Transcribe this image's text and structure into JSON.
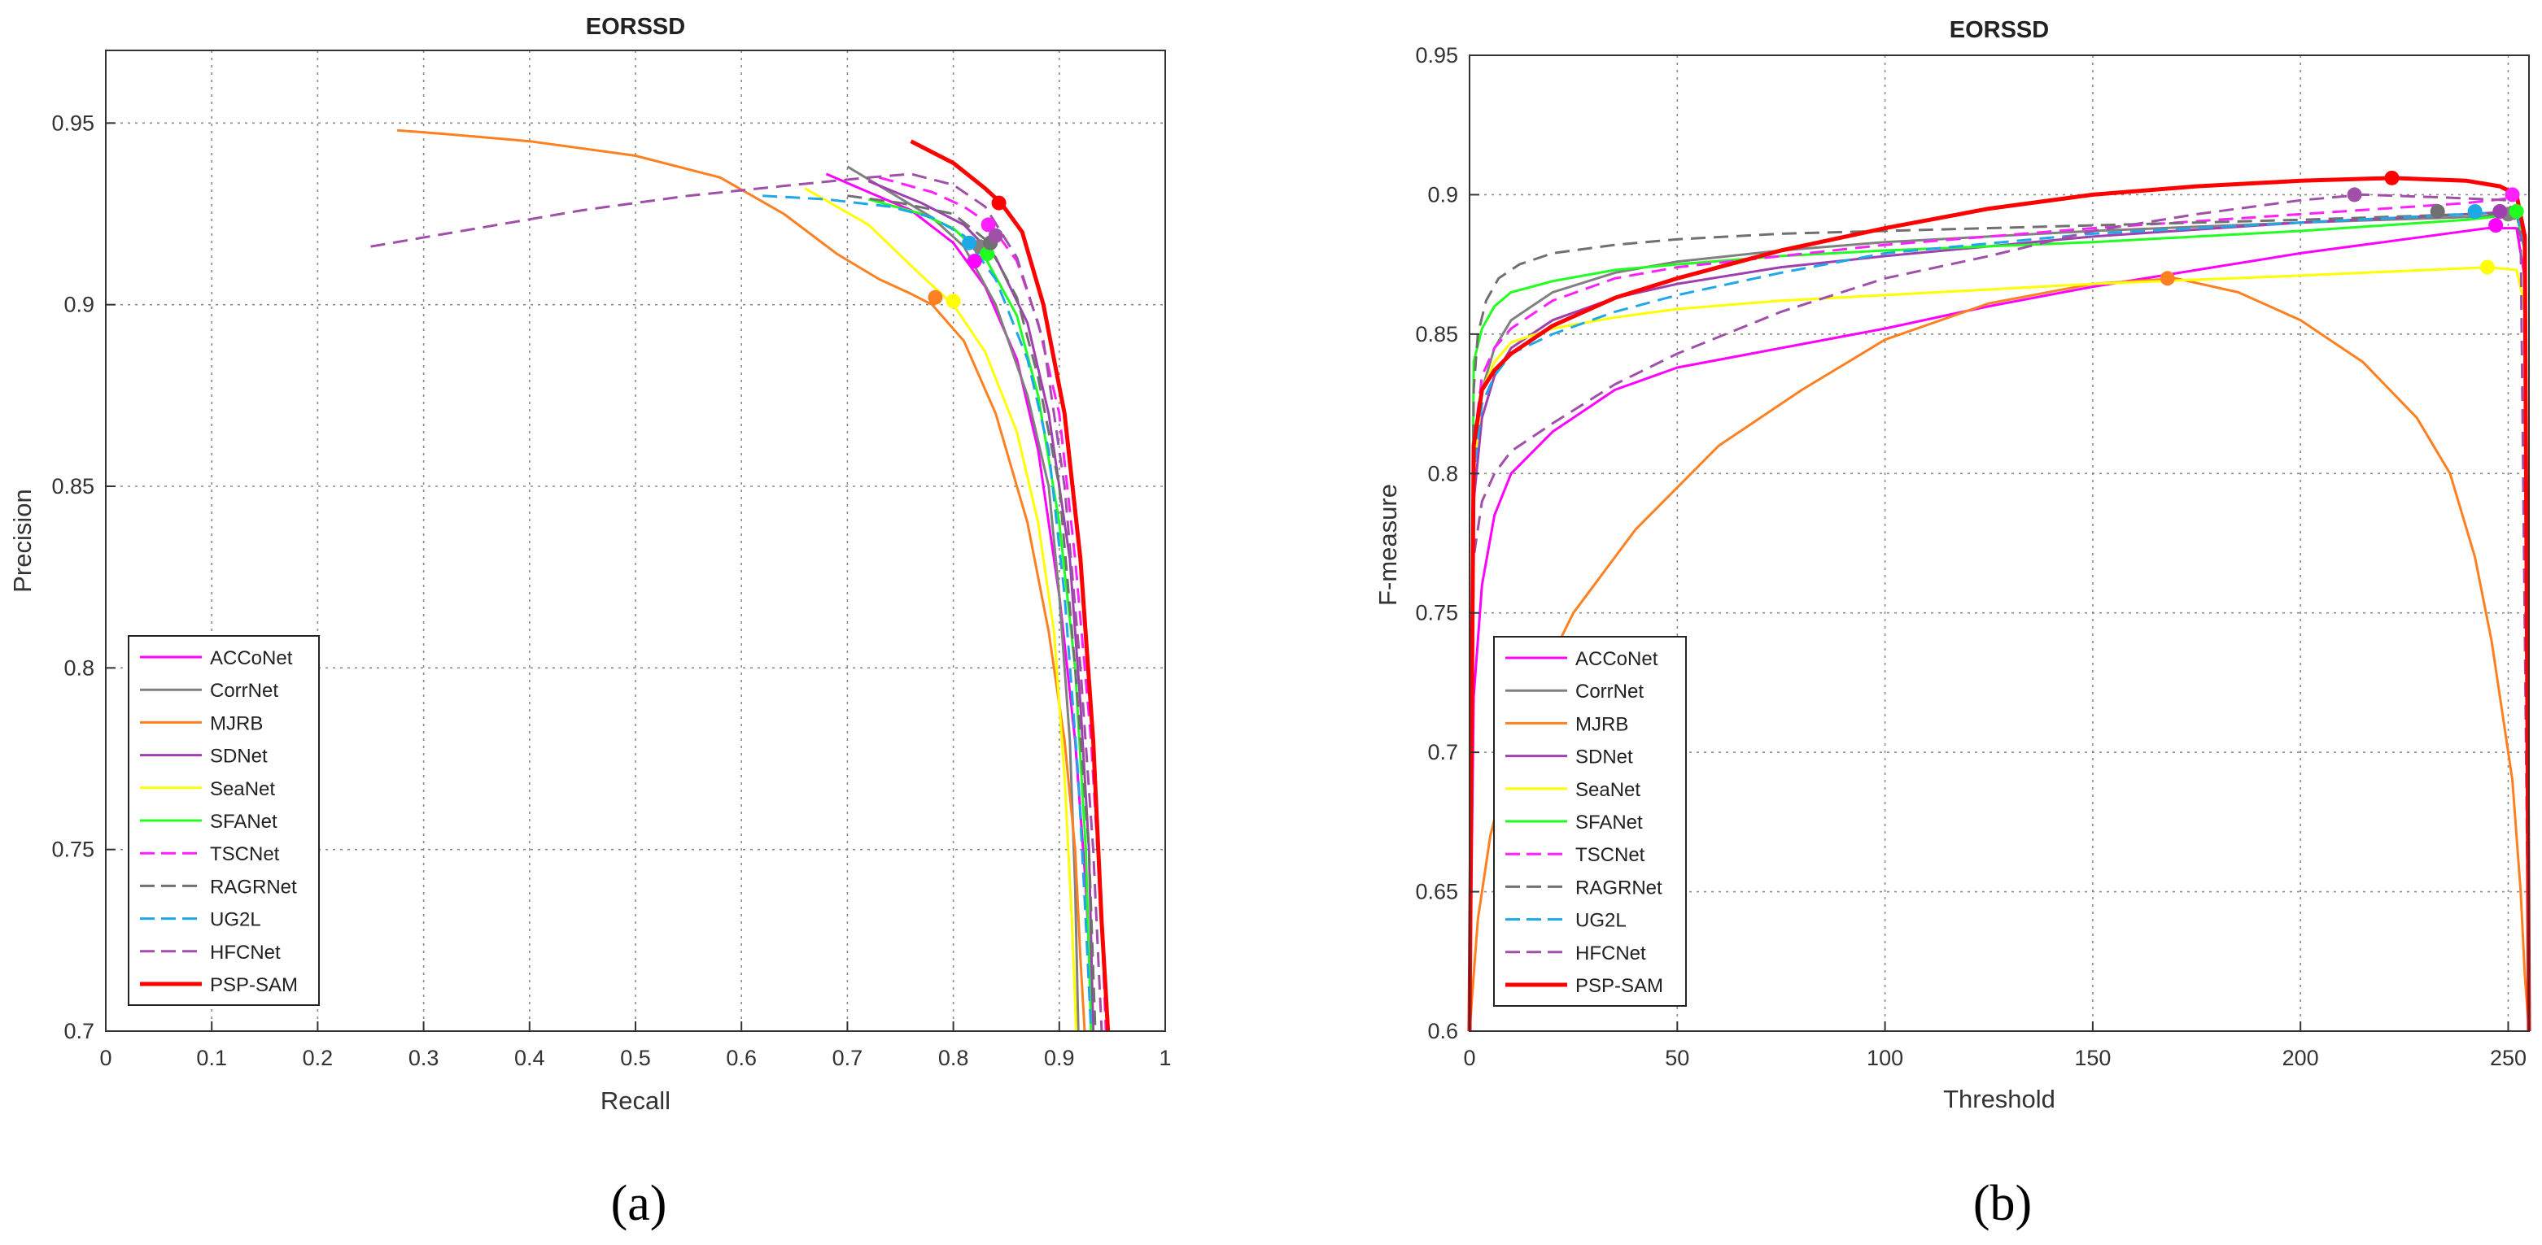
{
  "legend": [
    {
      "name": "ACCoNet",
      "color": "#ff00ff",
      "dash": false,
      "width": 3
    },
    {
      "name": "CorrNet",
      "color": "#808080",
      "dash": false,
      "width": 3
    },
    {
      "name": "MJRB",
      "color": "#ff8020",
      "dash": false,
      "width": 3
    },
    {
      "name": "SDNet",
      "color": "#a040b0",
      "dash": false,
      "width": 3
    },
    {
      "name": "SeaNet",
      "color": "#ffff00",
      "dash": false,
      "width": 3
    },
    {
      "name": "SFANet",
      "color": "#20ff20",
      "dash": false,
      "width": 3
    },
    {
      "name": "TSCNet",
      "color": "#ff20ff",
      "dash": true,
      "width": 3
    },
    {
      "name": "RAGRNet",
      "color": "#707070",
      "dash": true,
      "width": 3
    },
    {
      "name": "UG2L",
      "color": "#1ea8e8",
      "dash": true,
      "width": 3
    },
    {
      "name": "HFCNet",
      "color": "#a050a8",
      "dash": true,
      "width": 3
    },
    {
      "name": "PSP-SAM",
      "color": "#ff0000",
      "dash": false,
      "width": 5
    }
  ],
  "captions": {
    "a": "(a)",
    "b": "(b)"
  },
  "chart_data": [
    {
      "type": "line",
      "title": "EORSSD",
      "xlabel": "Recall",
      "ylabel": "Precision",
      "xlim": [
        0,
        1
      ],
      "ylim": [
        0.7,
        0.97
      ],
      "xticks": [
        0,
        0.1,
        0.2,
        0.3,
        0.4,
        0.5,
        0.6,
        0.7,
        0.8,
        0.9,
        1
      ],
      "xtick_labels": [
        "0",
        "0.1",
        "0.2",
        "0.3",
        "0.4",
        "0.5",
        "0.6",
        "0.7",
        "0.8",
        "0.9",
        "1"
      ],
      "yticks": [
        0.7,
        0.75,
        0.8,
        0.85,
        0.9,
        0.95
      ],
      "ytick_labels": [
        "0.7",
        "0.75",
        "0.8",
        "0.85",
        "0.9",
        "0.95"
      ],
      "grid": true,
      "legend_position": "bottom-left",
      "series": [
        {
          "name": "ACCoNet",
          "x": [
            0.68,
            0.72,
            0.76,
            0.8,
            0.83,
            0.86,
            0.88,
            0.9,
            0.915,
            0.925,
            0.93,
            0.932
          ],
          "y": [
            0.936,
            0.931,
            0.926,
            0.917,
            0.905,
            0.885,
            0.86,
            0.82,
            0.78,
            0.74,
            0.71,
            0.7
          ],
          "marker": [
            0.82,
            0.912
          ]
        },
        {
          "name": "CorrNet",
          "x": [
            0.7,
            0.74,
            0.78,
            0.81,
            0.84,
            0.87,
            0.89,
            0.9,
            0.91,
            0.915,
            0.918
          ],
          "y": [
            0.938,
            0.931,
            0.924,
            0.916,
            0.9,
            0.875,
            0.85,
            0.82,
            0.78,
            0.74,
            0.7
          ],
          "marker": [
            0.825,
            0.916
          ]
        },
        {
          "name": "MJRB",
          "x": [
            0.275,
            0.32,
            0.4,
            0.5,
            0.58,
            0.64,
            0.69,
            0.73,
            0.76,
            0.78,
            0.81,
            0.84,
            0.87,
            0.89,
            0.905,
            0.915,
            0.92,
            0.924
          ],
          "y": [
            0.948,
            0.947,
            0.945,
            0.941,
            0.935,
            0.925,
            0.914,
            0.907,
            0.903,
            0.9,
            0.89,
            0.87,
            0.84,
            0.81,
            0.78,
            0.75,
            0.72,
            0.7
          ],
          "marker": [
            0.783,
            0.902
          ]
        },
        {
          "name": "SDNet",
          "x": [
            0.72,
            0.77,
            0.81,
            0.84,
            0.87,
            0.89,
            0.91,
            0.92,
            0.928,
            0.932
          ],
          "y": [
            0.934,
            0.928,
            0.922,
            0.913,
            0.895,
            0.87,
            0.83,
            0.79,
            0.75,
            0.7
          ],
          "marker": [
            0.835,
            0.917
          ]
        },
        {
          "name": "SeaNet",
          "x": [
            0.66,
            0.72,
            0.77,
            0.8,
            0.83,
            0.86,
            0.88,
            0.895,
            0.905,
            0.912,
            0.916
          ],
          "y": [
            0.932,
            0.922,
            0.908,
            0.9,
            0.887,
            0.865,
            0.84,
            0.81,
            0.77,
            0.73,
            0.7
          ],
          "marker": [
            0.8,
            0.901
          ]
        },
        {
          "name": "SFANet",
          "x": [
            0.72,
            0.77,
            0.8,
            0.83,
            0.86,
            0.88,
            0.9,
            0.915,
            0.925,
            0.93
          ],
          "y": [
            0.929,
            0.925,
            0.921,
            0.913,
            0.897,
            0.875,
            0.84,
            0.8,
            0.75,
            0.7
          ],
          "marker": [
            0.832,
            0.914
          ]
        },
        {
          "name": "TSCNet",
          "x": [
            0.73,
            0.78,
            0.81,
            0.835,
            0.86,
            0.88,
            0.9,
            0.915,
            0.93,
            0.94,
            0.944
          ],
          "y": [
            0.935,
            0.931,
            0.927,
            0.922,
            0.912,
            0.895,
            0.87,
            0.83,
            0.78,
            0.73,
            0.7
          ],
          "marker": [
            0.833,
            0.922
          ]
        },
        {
          "name": "RAGRNet",
          "x": [
            0.7,
            0.75,
            0.8,
            0.83,
            0.86,
            0.88,
            0.9,
            0.915,
            0.928,
            0.934
          ],
          "y": [
            0.93,
            0.928,
            0.925,
            0.918,
            0.902,
            0.88,
            0.85,
            0.8,
            0.75,
            0.7
          ],
          "marker": [
            0.835,
            0.917
          ]
        },
        {
          "name": "UG2L",
          "x": [
            0.62,
            0.68,
            0.74,
            0.78,
            0.81,
            0.84,
            0.87,
            0.89,
            0.905,
            0.918,
            0.925,
            0.93
          ],
          "y": [
            0.93,
            0.929,
            0.927,
            0.924,
            0.919,
            0.907,
            0.885,
            0.86,
            0.82,
            0.77,
            0.73,
            0.7
          ],
          "marker": [
            0.815,
            0.917
          ]
        },
        {
          "name": "HFCNet",
          "x": [
            0.25,
            0.35,
            0.45,
            0.55,
            0.65,
            0.72,
            0.76,
            0.8,
            0.83,
            0.86,
            0.885,
            0.905,
            0.92,
            0.932,
            0.94
          ],
          "y": [
            0.916,
            0.921,
            0.926,
            0.93,
            0.933,
            0.935,
            0.936,
            0.933,
            0.927,
            0.913,
            0.89,
            0.85,
            0.8,
            0.75,
            0.7
          ],
          "marker": [
            0.84,
            0.919
          ]
        },
        {
          "name": "PSP-SAM",
          "x": [
            0.76,
            0.8,
            0.83,
            0.845,
            0.865,
            0.885,
            0.905,
            0.92,
            0.932,
            0.94,
            0.946
          ],
          "y": [
            0.945,
            0.939,
            0.932,
            0.928,
            0.92,
            0.9,
            0.87,
            0.83,
            0.78,
            0.73,
            0.7
          ],
          "marker": [
            0.843,
            0.928
          ]
        }
      ]
    },
    {
      "type": "line",
      "title": "EORSSD",
      "xlabel": "Threshold",
      "ylabel": "F-measure",
      "xlim": [
        0,
        255
      ],
      "ylim": [
        0.6,
        0.95
      ],
      "xticks": [
        0,
        50,
        100,
        150,
        200,
        250
      ],
      "xtick_labels": [
        "0",
        "50",
        "100",
        "150",
        "200",
        "250"
      ],
      "yticks": [
        0.6,
        0.65,
        0.7,
        0.75,
        0.8,
        0.85,
        0.9,
        0.95
      ],
      "ytick_labels": [
        "0.6",
        "0.65",
        "0.7",
        "0.75",
        "0.8",
        "0.85",
        "0.9",
        "0.95"
      ],
      "grid": true,
      "legend_position": "bottom-left",
      "series": [
        {
          "name": "ACCoNet",
          "x": [
            0,
            1,
            3,
            6,
            10,
            20,
            35,
            50,
            75,
            100,
            125,
            150,
            175,
            200,
            225,
            245,
            252,
            254,
            255
          ],
          "y": [
            0.6,
            0.72,
            0.76,
            0.785,
            0.8,
            0.815,
            0.83,
            0.838,
            0.845,
            0.852,
            0.86,
            0.867,
            0.873,
            0.879,
            0.884,
            0.888,
            0.888,
            0.87,
            0.6
          ],
          "marker": [
            247,
            0.889
          ]
        },
        {
          "name": "CorrNet",
          "x": [
            0,
            1,
            3,
            6,
            10,
            20,
            35,
            50,
            75,
            100,
            150,
            200,
            240,
            252,
            254,
            255
          ],
          "y": [
            0.6,
            0.8,
            0.83,
            0.845,
            0.855,
            0.865,
            0.872,
            0.876,
            0.88,
            0.883,
            0.887,
            0.89,
            0.892,
            0.893,
            0.88,
            0.6
          ],
          "marker": [
            250,
            0.893
          ]
        },
        {
          "name": "MJRB",
          "x": [
            0,
            2,
            5,
            10,
            15,
            25,
            40,
            60,
            80,
            100,
            125,
            150,
            170,
            185,
            200,
            215,
            228,
            236,
            242,
            246,
            249,
            251,
            253,
            254,
            255
          ],
          "y": [
            0.6,
            0.64,
            0.67,
            0.7,
            0.72,
            0.75,
            0.78,
            0.81,
            0.83,
            0.848,
            0.861,
            0.868,
            0.87,
            0.865,
            0.855,
            0.84,
            0.82,
            0.8,
            0.77,
            0.74,
            0.71,
            0.69,
            0.65,
            0.62,
            0.6
          ],
          "marker": [
            168,
            0.87
          ]
        },
        {
          "name": "SDNet",
          "x": [
            0,
            1,
            3,
            6,
            10,
            20,
            35,
            50,
            75,
            100,
            150,
            200,
            240,
            252,
            254,
            255
          ],
          "y": [
            0.6,
            0.79,
            0.82,
            0.835,
            0.845,
            0.855,
            0.863,
            0.868,
            0.874,
            0.878,
            0.885,
            0.89,
            0.893,
            0.894,
            0.88,
            0.6
          ],
          "marker": [
            248,
            0.894
          ]
        },
        {
          "name": "SeaNet",
          "x": [
            0,
            1,
            3,
            6,
            10,
            20,
            35,
            50,
            75,
            100,
            150,
            200,
            245,
            252,
            254,
            255
          ],
          "y": [
            0.6,
            0.8,
            0.83,
            0.84,
            0.847,
            0.852,
            0.856,
            0.859,
            0.862,
            0.864,
            0.868,
            0.871,
            0.874,
            0.873,
            0.86,
            0.6
          ],
          "marker": [
            245,
            0.874
          ]
        },
        {
          "name": "SFANet",
          "x": [
            0,
            1,
            3,
            6,
            10,
            20,
            35,
            50,
            75,
            100,
            150,
            200,
            240,
            252,
            254,
            255
          ],
          "y": [
            0.6,
            0.84,
            0.852,
            0.86,
            0.865,
            0.869,
            0.873,
            0.875,
            0.878,
            0.88,
            0.883,
            0.887,
            0.891,
            0.893,
            0.88,
            0.6
          ],
          "marker": [
            252,
            0.894
          ]
        },
        {
          "name": "TSCNet",
          "x": [
            0,
            1,
            3,
            6,
            10,
            20,
            35,
            50,
            75,
            100,
            150,
            200,
            240,
            252,
            254,
            255
          ],
          "y": [
            0.6,
            0.81,
            0.835,
            0.845,
            0.852,
            0.862,
            0.87,
            0.874,
            0.878,
            0.882,
            0.888,
            0.893,
            0.897,
            0.899,
            0.885,
            0.6
          ],
          "marker": [
            251,
            0.9
          ]
        },
        {
          "name": "RAGRNet",
          "x": [
            0,
            1,
            2,
            4,
            7,
            12,
            20,
            35,
            50,
            75,
            100,
            150,
            200,
            240,
            252,
            254,
            255
          ],
          "y": [
            0.6,
            0.83,
            0.85,
            0.862,
            0.87,
            0.875,
            0.879,
            0.882,
            0.884,
            0.886,
            0.887,
            0.889,
            0.891,
            0.893,
            0.893,
            0.88,
            0.6
          ],
          "marker": [
            233,
            0.894
          ]
        },
        {
          "name": "UG2L",
          "x": [
            0,
            1,
            3,
            6,
            10,
            20,
            35,
            50,
            75,
            100,
            150,
            200,
            240,
            252,
            254,
            255
          ],
          "y": [
            0.6,
            0.8,
            0.825,
            0.835,
            0.843,
            0.85,
            0.858,
            0.864,
            0.872,
            0.879,
            0.886,
            0.89,
            0.893,
            0.894,
            0.88,
            0.6
          ],
          "marker": [
            242,
            0.894
          ]
        },
        {
          "name": "HFCNet",
          "x": [
            0,
            1,
            3,
            6,
            10,
            20,
            35,
            50,
            75,
            100,
            125,
            150,
            175,
            200,
            215,
            235,
            250,
            253,
            255
          ],
          "y": [
            0.6,
            0.77,
            0.79,
            0.8,
            0.808,
            0.818,
            0.832,
            0.843,
            0.858,
            0.87,
            0.878,
            0.887,
            0.893,
            0.898,
            0.9,
            0.899,
            0.898,
            0.885,
            0.6
          ],
          "marker": [
            213,
            0.9
          ]
        },
        {
          "name": "PSP-SAM",
          "x": [
            0,
            1,
            3,
            6,
            10,
            20,
            35,
            50,
            75,
            100,
            125,
            150,
            175,
            200,
            222,
            240,
            248,
            252,
            254,
            255
          ],
          "y": [
            0.6,
            0.81,
            0.83,
            0.837,
            0.843,
            0.853,
            0.863,
            0.87,
            0.88,
            0.888,
            0.895,
            0.9,
            0.903,
            0.905,
            0.906,
            0.905,
            0.903,
            0.9,
            0.885,
            0.6
          ],
          "marker": [
            222,
            0.906
          ]
        }
      ]
    }
  ]
}
